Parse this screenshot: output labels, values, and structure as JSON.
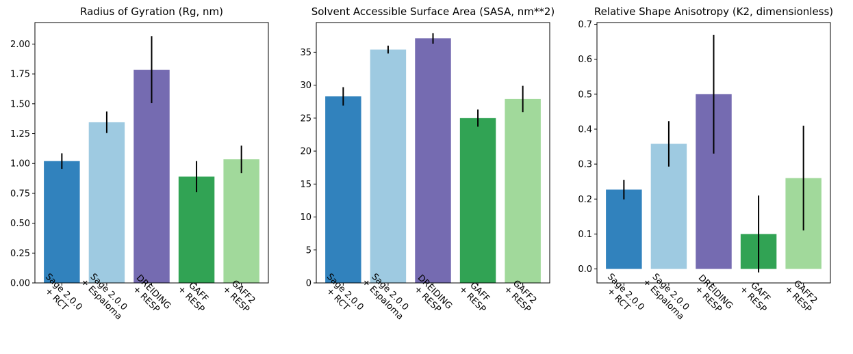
{
  "colors": [
    "#3182bd",
    "#9ecae1",
    "#756bb1",
    "#31a354",
    "#a1d99b"
  ],
  "chart_data": [
    {
      "type": "bar",
      "title": "Radius of Gyration (Rg, nm)",
      "categories": [
        "Sage 2.0.0\n+ RCT",
        "Sage 2.0.0\n+ Espaloma",
        "DREIDING\n+ RESP",
        "GAFF\n+ RESP",
        "GAFF2\n+ RESP"
      ],
      "values": [
        1.02,
        1.345,
        1.785,
        0.89,
        1.035
      ],
      "errors": [
        0.065,
        0.09,
        0.28,
        0.13,
        0.115
      ],
      "ylim": [
        0,
        2.18
      ],
      "yticks": [
        0.0,
        0.25,
        0.5,
        0.75,
        1.0,
        1.25,
        1.5,
        1.75,
        2.0
      ],
      "ytick_labels": [
        "0.00",
        "0.25",
        "0.50",
        "0.75",
        "1.00",
        "1.25",
        "1.50",
        "1.75",
        "2.00"
      ],
      "grid": false
    },
    {
      "type": "bar",
      "title": "Solvent Accessible Surface Area (SASA, nm**2)",
      "categories": [
        "Sage 2.0.0\n+ RCT",
        "Sage 2.0.0\n+ Espaloma",
        "DREIDING\n+ RESP",
        "GAFF\n+ RESP",
        "GAFF2\n+ RESP"
      ],
      "values": [
        28.3,
        35.4,
        37.1,
        25.0,
        27.9
      ],
      "errors": [
        1.4,
        0.6,
        0.8,
        1.3,
        2.0
      ],
      "ylim": [
        0,
        39.5
      ],
      "yticks": [
        0,
        5,
        10,
        15,
        20,
        25,
        30,
        35
      ],
      "ytick_labels": [
        "0",
        "5",
        "10",
        "15",
        "20",
        "25",
        "30",
        "35"
      ],
      "grid": false
    },
    {
      "type": "bar",
      "title": "Relative Shape Anisotropy (K2, dimensionless)",
      "categories": [
        "Sage 2.0.0\n+ RCT",
        "Sage 2.0.0\n+ Espaloma",
        "DREIDING\n+ RESP",
        "GAFF\n+ RESP",
        "GAFF2\n+ RESP"
      ],
      "values": [
        0.227,
        0.358,
        0.5,
        0.1,
        0.26
      ],
      "errors": [
        0.028,
        0.065,
        0.17,
        0.11,
        0.15
      ],
      "ylim": [
        -0.04,
        0.705
      ],
      "yticks": [
        0.0,
        0.1,
        0.2,
        0.3,
        0.4,
        0.5,
        0.6,
        0.7
      ],
      "ytick_labels": [
        "0.0",
        "0.1",
        "0.2",
        "0.3",
        "0.4",
        "0.5",
        "0.6",
        "0.7"
      ],
      "grid": false
    }
  ]
}
